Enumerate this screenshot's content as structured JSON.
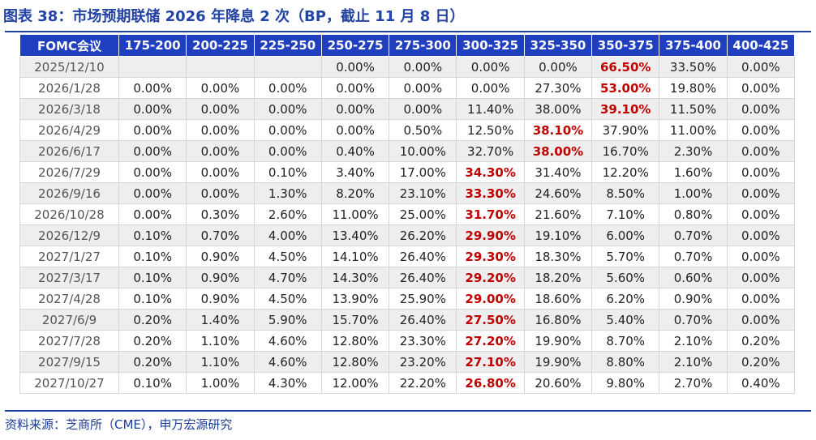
{
  "title": "图表 38：市场预期联储 2026 年降息 2 次（BP，截止 11 月 8 日）",
  "source": "资料来源：芝商所（CME），申万宏源研究",
  "colors": {
    "header_bg": "#1f3fbf",
    "title": "#2243a3",
    "highlight": "#c00000",
    "stripe": "#eeeeee"
  },
  "chart_data": {
    "type": "table",
    "title": "市场预期联储 2026 年降息 2 次（BP，截止 11 月 8 日）",
    "columns": [
      "FOMC会议",
      "175-200",
      "200-225",
      "225-250",
      "250-275",
      "275-300",
      "300-325",
      "325-350",
      "350-375",
      "375-400",
      "400-425"
    ],
    "rows": [
      {
        "date": "2025/12/10",
        "values": [
          "",
          "",
          "",
          "0.00%",
          "0.00%",
          "0.00%",
          "0.00%",
          "66.50%",
          "33.50%",
          "0.00%"
        ],
        "max_index": 7
      },
      {
        "date": "2026/1/28",
        "values": [
          "0.00%",
          "0.00%",
          "0.00%",
          "0.00%",
          "0.00%",
          "0.00%",
          "27.30%",
          "53.00%",
          "19.80%",
          "0.00%"
        ],
        "max_index": 7
      },
      {
        "date": "2026/3/18",
        "values": [
          "0.00%",
          "0.00%",
          "0.00%",
          "0.00%",
          "0.00%",
          "11.40%",
          "38.00%",
          "39.10%",
          "11.50%",
          "0.00%"
        ],
        "max_index": 7
      },
      {
        "date": "2026/4/29",
        "values": [
          "0.00%",
          "0.00%",
          "0.00%",
          "0.00%",
          "0.50%",
          "12.50%",
          "38.10%",
          "37.90%",
          "11.00%",
          "0.00%"
        ],
        "max_index": 6
      },
      {
        "date": "2026/6/17",
        "values": [
          "0.00%",
          "0.00%",
          "0.00%",
          "0.40%",
          "10.00%",
          "32.70%",
          "38.00%",
          "16.70%",
          "2.30%",
          "0.00%"
        ],
        "max_index": 6
      },
      {
        "date": "2026/7/29",
        "values": [
          "0.00%",
          "0.00%",
          "0.10%",
          "3.40%",
          "17.00%",
          "34.30%",
          "31.40%",
          "12.20%",
          "1.60%",
          "0.00%"
        ],
        "max_index": 5
      },
      {
        "date": "2026/9/16",
        "values": [
          "0.00%",
          "0.00%",
          "1.30%",
          "8.20%",
          "23.10%",
          "33.30%",
          "24.60%",
          "8.50%",
          "1.00%",
          "0.00%"
        ],
        "max_index": 5
      },
      {
        "date": "2026/10/28",
        "values": [
          "0.00%",
          "0.30%",
          "2.60%",
          "11.00%",
          "25.00%",
          "31.70%",
          "21.60%",
          "7.10%",
          "0.80%",
          "0.00%"
        ],
        "max_index": 5
      },
      {
        "date": "2026/12/9",
        "values": [
          "0.10%",
          "0.70%",
          "4.00%",
          "13.40%",
          "26.20%",
          "29.90%",
          "19.10%",
          "6.00%",
          "0.70%",
          "0.00%"
        ],
        "max_index": 5
      },
      {
        "date": "2027/1/27",
        "values": [
          "0.10%",
          "0.90%",
          "4.50%",
          "14.10%",
          "26.40%",
          "29.30%",
          "18.30%",
          "5.70%",
          "0.70%",
          "0.00%"
        ],
        "max_index": 5
      },
      {
        "date": "2027/3/17",
        "values": [
          "0.10%",
          "0.90%",
          "4.70%",
          "14.30%",
          "26.40%",
          "29.20%",
          "18.20%",
          "5.60%",
          "0.60%",
          "0.00%"
        ],
        "max_index": 5
      },
      {
        "date": "2027/4/28",
        "values": [
          "0.10%",
          "0.90%",
          "4.50%",
          "13.90%",
          "25.90%",
          "29.00%",
          "18.60%",
          "6.20%",
          "0.90%",
          "0.00%"
        ],
        "max_index": 5
      },
      {
        "date": "2027/6/9",
        "values": [
          "0.20%",
          "1.40%",
          "5.90%",
          "15.70%",
          "26.40%",
          "27.50%",
          "16.80%",
          "5.40%",
          "0.70%",
          "0.00%"
        ],
        "max_index": 5
      },
      {
        "date": "2027/7/28",
        "values": [
          "0.20%",
          "1.10%",
          "4.60%",
          "12.80%",
          "23.30%",
          "27.20%",
          "19.90%",
          "8.70%",
          "2.10%",
          "0.20%"
        ],
        "max_index": 5
      },
      {
        "date": "2027/9/15",
        "values": [
          "0.20%",
          "1.10%",
          "4.60%",
          "12.80%",
          "23.20%",
          "27.10%",
          "19.90%",
          "8.80%",
          "2.10%",
          "0.20%"
        ],
        "max_index": 5
      },
      {
        "date": "2027/10/27",
        "values": [
          "0.10%",
          "1.00%",
          "4.30%",
          "12.00%",
          "22.20%",
          "26.80%",
          "20.60%",
          "9.80%",
          "2.70%",
          "0.40%"
        ],
        "max_index": 5
      }
    ]
  }
}
